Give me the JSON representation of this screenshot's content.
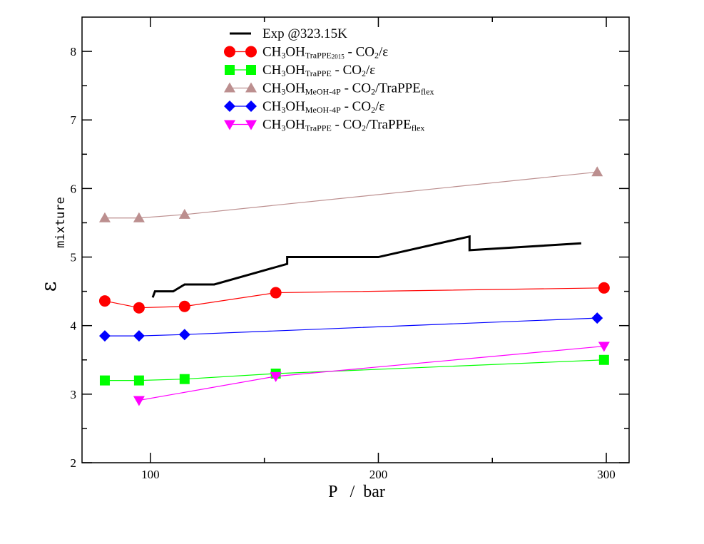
{
  "chart_data": {
    "type": "line",
    "xlabel": "P   /  bar",
    "ylabel": "ε",
    "ylabel_subscript": "mixture",
    "xlim": [
      70,
      310
    ],
    "ylim": [
      2,
      8.5
    ],
    "xticks": [
      100,
      200,
      300
    ],
    "yticks": [
      2,
      3,
      4,
      5,
      6,
      7,
      8
    ],
    "legend_position": "top-center",
    "grid": false,
    "series": [
      {
        "name": "Exp @323.15K",
        "color": "#000000",
        "marker": "none",
        "line_width": 3,
        "x": [
          101,
          102,
          110,
          115,
          128,
          160,
          160,
          200,
          240,
          240,
          289
        ],
        "y": [
          4.41,
          4.5,
          4.5,
          4.6,
          4.6,
          4.9,
          5.0,
          5.0,
          5.3,
          5.1,
          5.2
        ]
      },
      {
        "name": "CH3OH_TraPPE2015 - CO2/ε",
        "legend_parts": [
          {
            "t": "CH"
          },
          {
            "t": "3",
            "sub": true
          },
          {
            "t": "OH"
          },
          {
            "t": "TraPPE",
            "sub": true
          },
          {
            "t": "2015",
            "sub2": true
          },
          {
            "t": " - CO"
          },
          {
            "t": "2",
            "sub": true
          },
          {
            "t": "/ε"
          }
        ],
        "color": "#ff0000",
        "marker": "circle",
        "x": [
          80,
          95,
          115,
          155,
          299
        ],
        "y": [
          4.36,
          4.26,
          4.28,
          4.48,
          4.55
        ]
      },
      {
        "name": "CH3OH_TraPPE - CO2/ε",
        "legend_parts": [
          {
            "t": "CH"
          },
          {
            "t": "3",
            "sub": true
          },
          {
            "t": "OH"
          },
          {
            "t": "TraPPE",
            "sub": true
          },
          {
            "t": " - CO"
          },
          {
            "t": "2",
            "sub": true
          },
          {
            "t": "/ε"
          }
        ],
        "color": "#00ff00",
        "marker": "square",
        "x": [
          80,
          95,
          115,
          155,
          299
        ],
        "y": [
          3.2,
          3.2,
          3.22,
          3.3,
          3.5
        ]
      },
      {
        "name": "CH3OH_MeOH-4P - CO2/TraPPE_flex",
        "legend_parts": [
          {
            "t": "CH"
          },
          {
            "t": "3",
            "sub": true
          },
          {
            "t": "OH"
          },
          {
            "t": "MeOH-4P",
            "sub": true
          },
          {
            "t": " - CO"
          },
          {
            "t": "2",
            "sub": true
          },
          {
            "t": "/TraPPE"
          },
          {
            "t": "flex",
            "sub": true
          }
        ],
        "color": "#bc8f8f",
        "marker": "triangle-up",
        "x": [
          80,
          95,
          115,
          296
        ],
        "y": [
          5.57,
          5.57,
          5.62,
          6.24
        ]
      },
      {
        "name": "CH3OH_MeOH-4P - CO2/ε",
        "legend_parts": [
          {
            "t": "CH"
          },
          {
            "t": "3",
            "sub": true
          },
          {
            "t": "OH"
          },
          {
            "t": "MeOH-4P",
            "sub": true
          },
          {
            "t": " - CO"
          },
          {
            "t": "2",
            "sub": true
          },
          {
            "t": "/ε"
          }
        ],
        "color": "#0000ff",
        "marker": "diamond",
        "x": [
          80,
          95,
          115,
          296
        ],
        "y": [
          3.85,
          3.85,
          3.87,
          4.11
        ]
      },
      {
        "name": "CH3OH_TraPPE - CO2/TraPPE_flex",
        "legend_parts": [
          {
            "t": "CH"
          },
          {
            "t": "3",
            "sub": true
          },
          {
            "t": "OH"
          },
          {
            "t": "TraPPE",
            "sub": true
          },
          {
            "t": " - CO"
          },
          {
            "t": "2",
            "sub": true
          },
          {
            "t": "/TraPPE"
          },
          {
            "t": "flex",
            "sub": true
          }
        ],
        "color": "#ff00ff",
        "marker": "triangle-down",
        "x": [
          95,
          155,
          299
        ],
        "y": [
          2.91,
          3.26,
          3.7
        ]
      }
    ]
  }
}
